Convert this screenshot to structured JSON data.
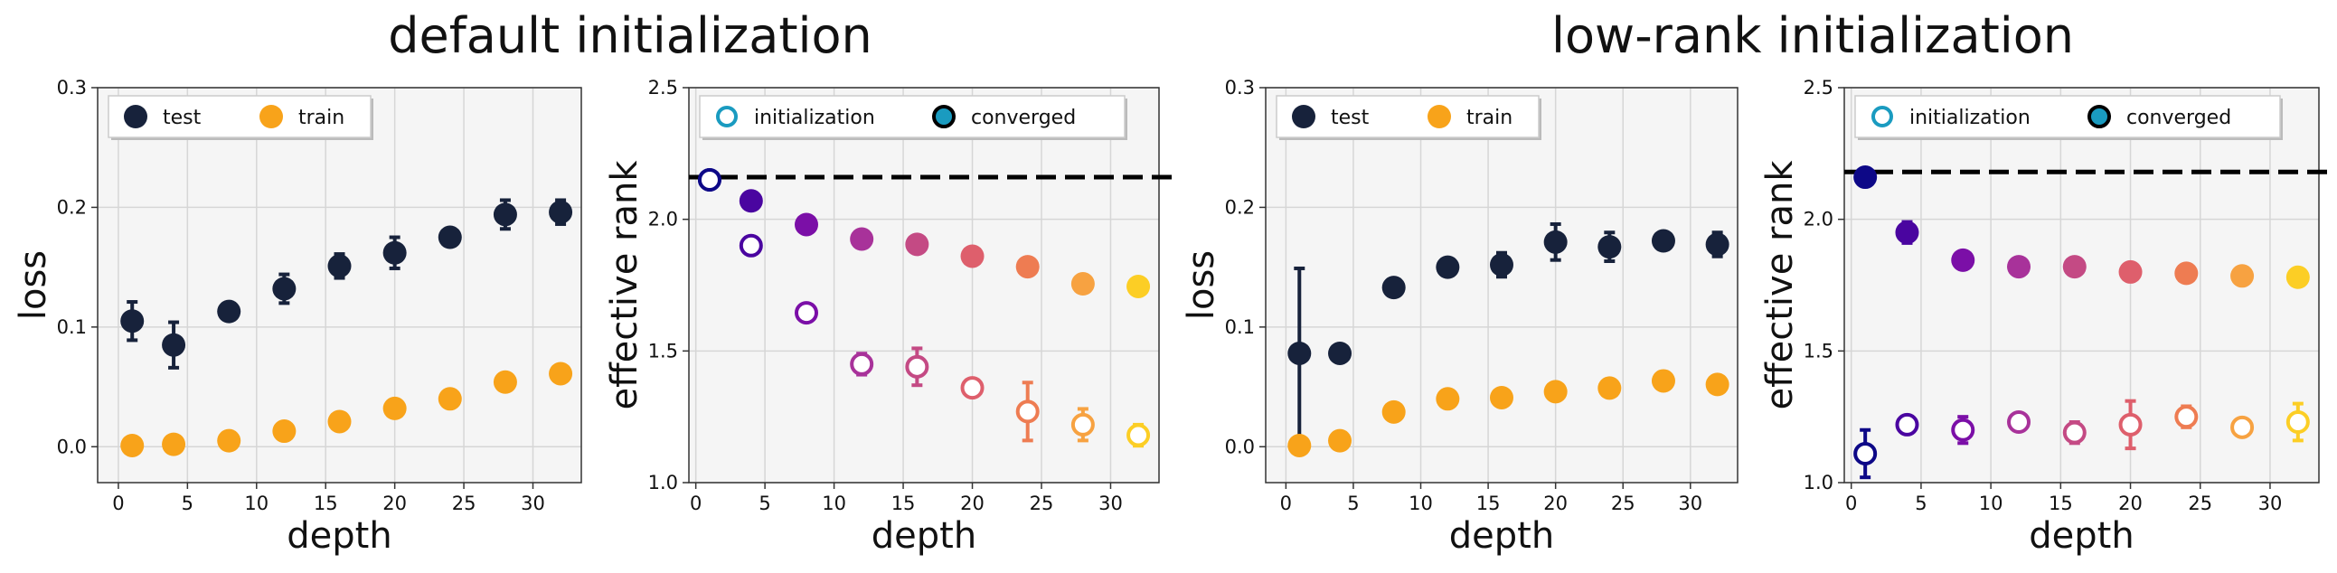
{
  "group_titles": [
    "default initialization",
    "low-rank  initialization"
  ],
  "chart_data": [
    {
      "type": "scatter",
      "title": "",
      "xlabel": "depth",
      "ylabel": "loss",
      "xlim": [
        -1.5,
        33.5
      ],
      "ylim": [
        -0.03,
        0.3
      ],
      "xticks": [
        0,
        5,
        10,
        15,
        20,
        25,
        30
      ],
      "yticks": [
        0.0,
        0.1,
        0.2,
        0.3
      ],
      "ytick_labels": [
        "0.0",
        "0.1",
        "0.2",
        "0.3"
      ],
      "grid": true,
      "legend_position": "top-left",
      "series": [
        {
          "name": "test",
          "color": "#17223b",
          "marker": "filled-circle",
          "x": [
            1,
            4,
            8,
            12,
            16,
            20,
            24,
            28,
            32
          ],
          "y": [
            0.105,
            0.085,
            0.113,
            0.132,
            0.151,
            0.162,
            0.175,
            0.194,
            0.196
          ],
          "err": [
            0.016,
            0.019,
            0.003,
            0.012,
            0.01,
            0.013,
            0.003,
            0.012,
            0.01
          ]
        },
        {
          "name": "train",
          "color": "#f8a31a",
          "marker": "filled-circle",
          "x": [
            1,
            4,
            8,
            12,
            16,
            20,
            24,
            28,
            32
          ],
          "y": [
            0.001,
            0.002,
            0.005,
            0.013,
            0.021,
            0.032,
            0.04,
            0.054,
            0.061
          ],
          "err": [
            0,
            0,
            0,
            0,
            0,
            0,
            0,
            0,
            0
          ]
        }
      ]
    },
    {
      "type": "scatter",
      "title": "",
      "xlabel": "depth",
      "ylabel": "effective rank",
      "xlim": [
        -0.5,
        33.5
      ],
      "ylim": [
        1.0,
        2.5
      ],
      "xticks": [
        0,
        5,
        10,
        15,
        20,
        25,
        30
      ],
      "yticks": [
        1.0,
        1.5,
        2.0,
        2.5
      ],
      "ytick_labels": [
        "1.0",
        "1.5",
        "2.0",
        "2.5"
      ],
      "grid": true,
      "legend_position": "top-left",
      "reference_line": 2.16,
      "legend": [
        {
          "name": "initialization",
          "style": "hollow",
          "color": "#1a9bc0"
        },
        {
          "name": "converged",
          "style": "filled",
          "color": "#1a9bc0"
        }
      ],
      "x": [
        1,
        4,
        8,
        12,
        16,
        20,
        24,
        28,
        32
      ],
      "point_colors": [
        "#0d0887",
        "#4a05a0",
        "#7b0fa7",
        "#a8329a",
        "#c44a84",
        "#de5f6c",
        "#ee7c52",
        "#f7a241",
        "#fcce25"
      ],
      "series": [
        {
          "name": "converged",
          "style": "filled",
          "y": [
            2.15,
            2.07,
            1.98,
            1.925,
            1.905,
            1.86,
            1.82,
            1.755,
            1.745
          ],
          "err": [
            0.01,
            0.01,
            0.01,
            0.01,
            0.01,
            0.01,
            0.01,
            0.01,
            0.03
          ]
        },
        {
          "name": "initialization",
          "style": "hollow",
          "y": [
            2.15,
            1.9,
            1.645,
            1.45,
            1.44,
            1.36,
            1.27,
            1.22,
            1.18
          ],
          "err": [
            0.0,
            0.0,
            0.0,
            0.04,
            0.07,
            0.02,
            0.11,
            0.06,
            0.04
          ]
        }
      ]
    },
    {
      "type": "scatter",
      "title": "",
      "xlabel": "depth",
      "ylabel": "loss",
      "xlim": [
        -1.5,
        33.5
      ],
      "ylim": [
        -0.03,
        0.3
      ],
      "xticks": [
        0,
        5,
        10,
        15,
        20,
        25,
        30
      ],
      "yticks": [
        0.0,
        0.1,
        0.2,
        0.3
      ],
      "ytick_labels": [
        "0.0",
        "0.1",
        "0.2",
        "0.3"
      ],
      "grid": true,
      "legend_position": "top-left",
      "series": [
        {
          "name": "test",
          "color": "#17223b",
          "marker": "filled-circle",
          "x": [
            1,
            4,
            8,
            12,
            16,
            20,
            24,
            28,
            32
          ],
          "y": [
            0.078,
            0.078,
            0.133,
            0.15,
            0.152,
            0.171,
            0.167,
            0.172,
            0.169
          ],
          "err": [
            0.071,
            0.003,
            0.003,
            0.003,
            0.01,
            0.015,
            0.012,
            0.003,
            0.01
          ]
        },
        {
          "name": "train",
          "color": "#f8a31a",
          "marker": "filled-circle",
          "x": [
            1,
            4,
            8,
            12,
            16,
            20,
            24,
            28,
            32
          ],
          "y": [
            0.001,
            0.005,
            0.029,
            0.04,
            0.041,
            0.046,
            0.049,
            0.055,
            0.052
          ],
          "err": [
            0,
            0,
            0,
            0,
            0,
            0,
            0,
            0,
            0
          ]
        }
      ]
    },
    {
      "type": "scatter",
      "title": "",
      "xlabel": "depth",
      "ylabel": "effective rank",
      "xlim": [
        -0.5,
        33.5
      ],
      "ylim": [
        1.0,
        2.5
      ],
      "xticks": [
        0,
        5,
        10,
        15,
        20,
        25,
        30
      ],
      "yticks": [
        1.0,
        1.5,
        2.0,
        2.5
      ],
      "ytick_labels": [
        "1.0",
        "1.5",
        "2.0",
        "2.5"
      ],
      "grid": true,
      "legend_position": "top-left",
      "reference_line": 2.18,
      "legend": [
        {
          "name": "initialization",
          "style": "hollow",
          "color": "#1a9bc0"
        },
        {
          "name": "converged",
          "style": "filled",
          "color": "#1a9bc0"
        }
      ],
      "x": [
        1,
        4,
        8,
        12,
        16,
        20,
        24,
        28,
        32
      ],
      "point_colors": [
        "#0d0887",
        "#4a05a0",
        "#7b0fa7",
        "#a8329a",
        "#c44a84",
        "#de5f6c",
        "#ee7c52",
        "#f7a241",
        "#fcce25"
      ],
      "series": [
        {
          "name": "converged",
          "style": "filled",
          "y": [
            2.16,
            1.95,
            1.845,
            1.82,
            1.82,
            1.8,
            1.795,
            1.785,
            1.78
          ],
          "err": [
            0.01,
            0.04,
            0.01,
            0.01,
            0.01,
            0.01,
            0.01,
            0.01,
            0.01
          ]
        },
        {
          "name": "initialization",
          "style": "hollow",
          "y": [
            1.11,
            1.22,
            1.2,
            1.23,
            1.19,
            1.22,
            1.25,
            1.21,
            1.23
          ],
          "err": [
            0.09,
            0.01,
            0.05,
            0.03,
            0.04,
            0.09,
            0.04,
            0.01,
            0.07
          ]
        }
      ]
    }
  ]
}
